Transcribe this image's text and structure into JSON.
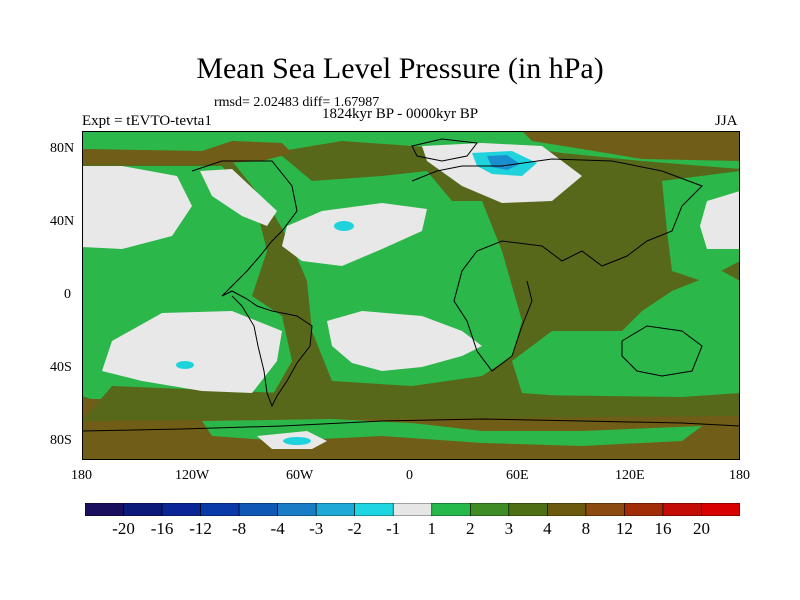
{
  "figure": {
    "title": "Mean Sea Level Pressure (in hPa)",
    "stats": "rmsd= 2.02483 diff= 1.67987",
    "period": "1824kyr BP - 0000kyr BP",
    "experiment": "Expt = tEVTO-tevta1",
    "season": "JJA"
  },
  "axes": {
    "lat_labels": [
      "80N",
      "40N",
      "0",
      "40S",
      "80S"
    ],
    "lon_labels": [
      "180",
      "120W",
      "60W",
      "0",
      "60E",
      "120E",
      "180"
    ]
  },
  "colorbar": {
    "labels": [
      "-20",
      "-16",
      "-12",
      "-8",
      "-4",
      "-3",
      "-2",
      "-1",
      "1",
      "2",
      "3",
      "4",
      "8",
      "12",
      "16",
      "20"
    ],
    "colors": [
      "#1a0f5c",
      "#0b1a78",
      "#0a2596",
      "#0a3aa8",
      "#0f57b4",
      "#1a7cc4",
      "#1ea8d6",
      "#1ed6e2",
      "#e6e6e6",
      "#25b84a",
      "#3f8c25",
      "#4f7012",
      "#6b5a0e",
      "#8a4a10",
      "#a02c08",
      "#c40c06",
      "#d80000"
    ]
  },
  "legend_colors": {
    "ocean_green": "#2bb74a",
    "land_olive": "#58681a",
    "brown": "#6f5d18",
    "light_gray": "#e8e8e8",
    "cyan": "#1fd3dc",
    "blue": "#1a8fd0"
  }
}
